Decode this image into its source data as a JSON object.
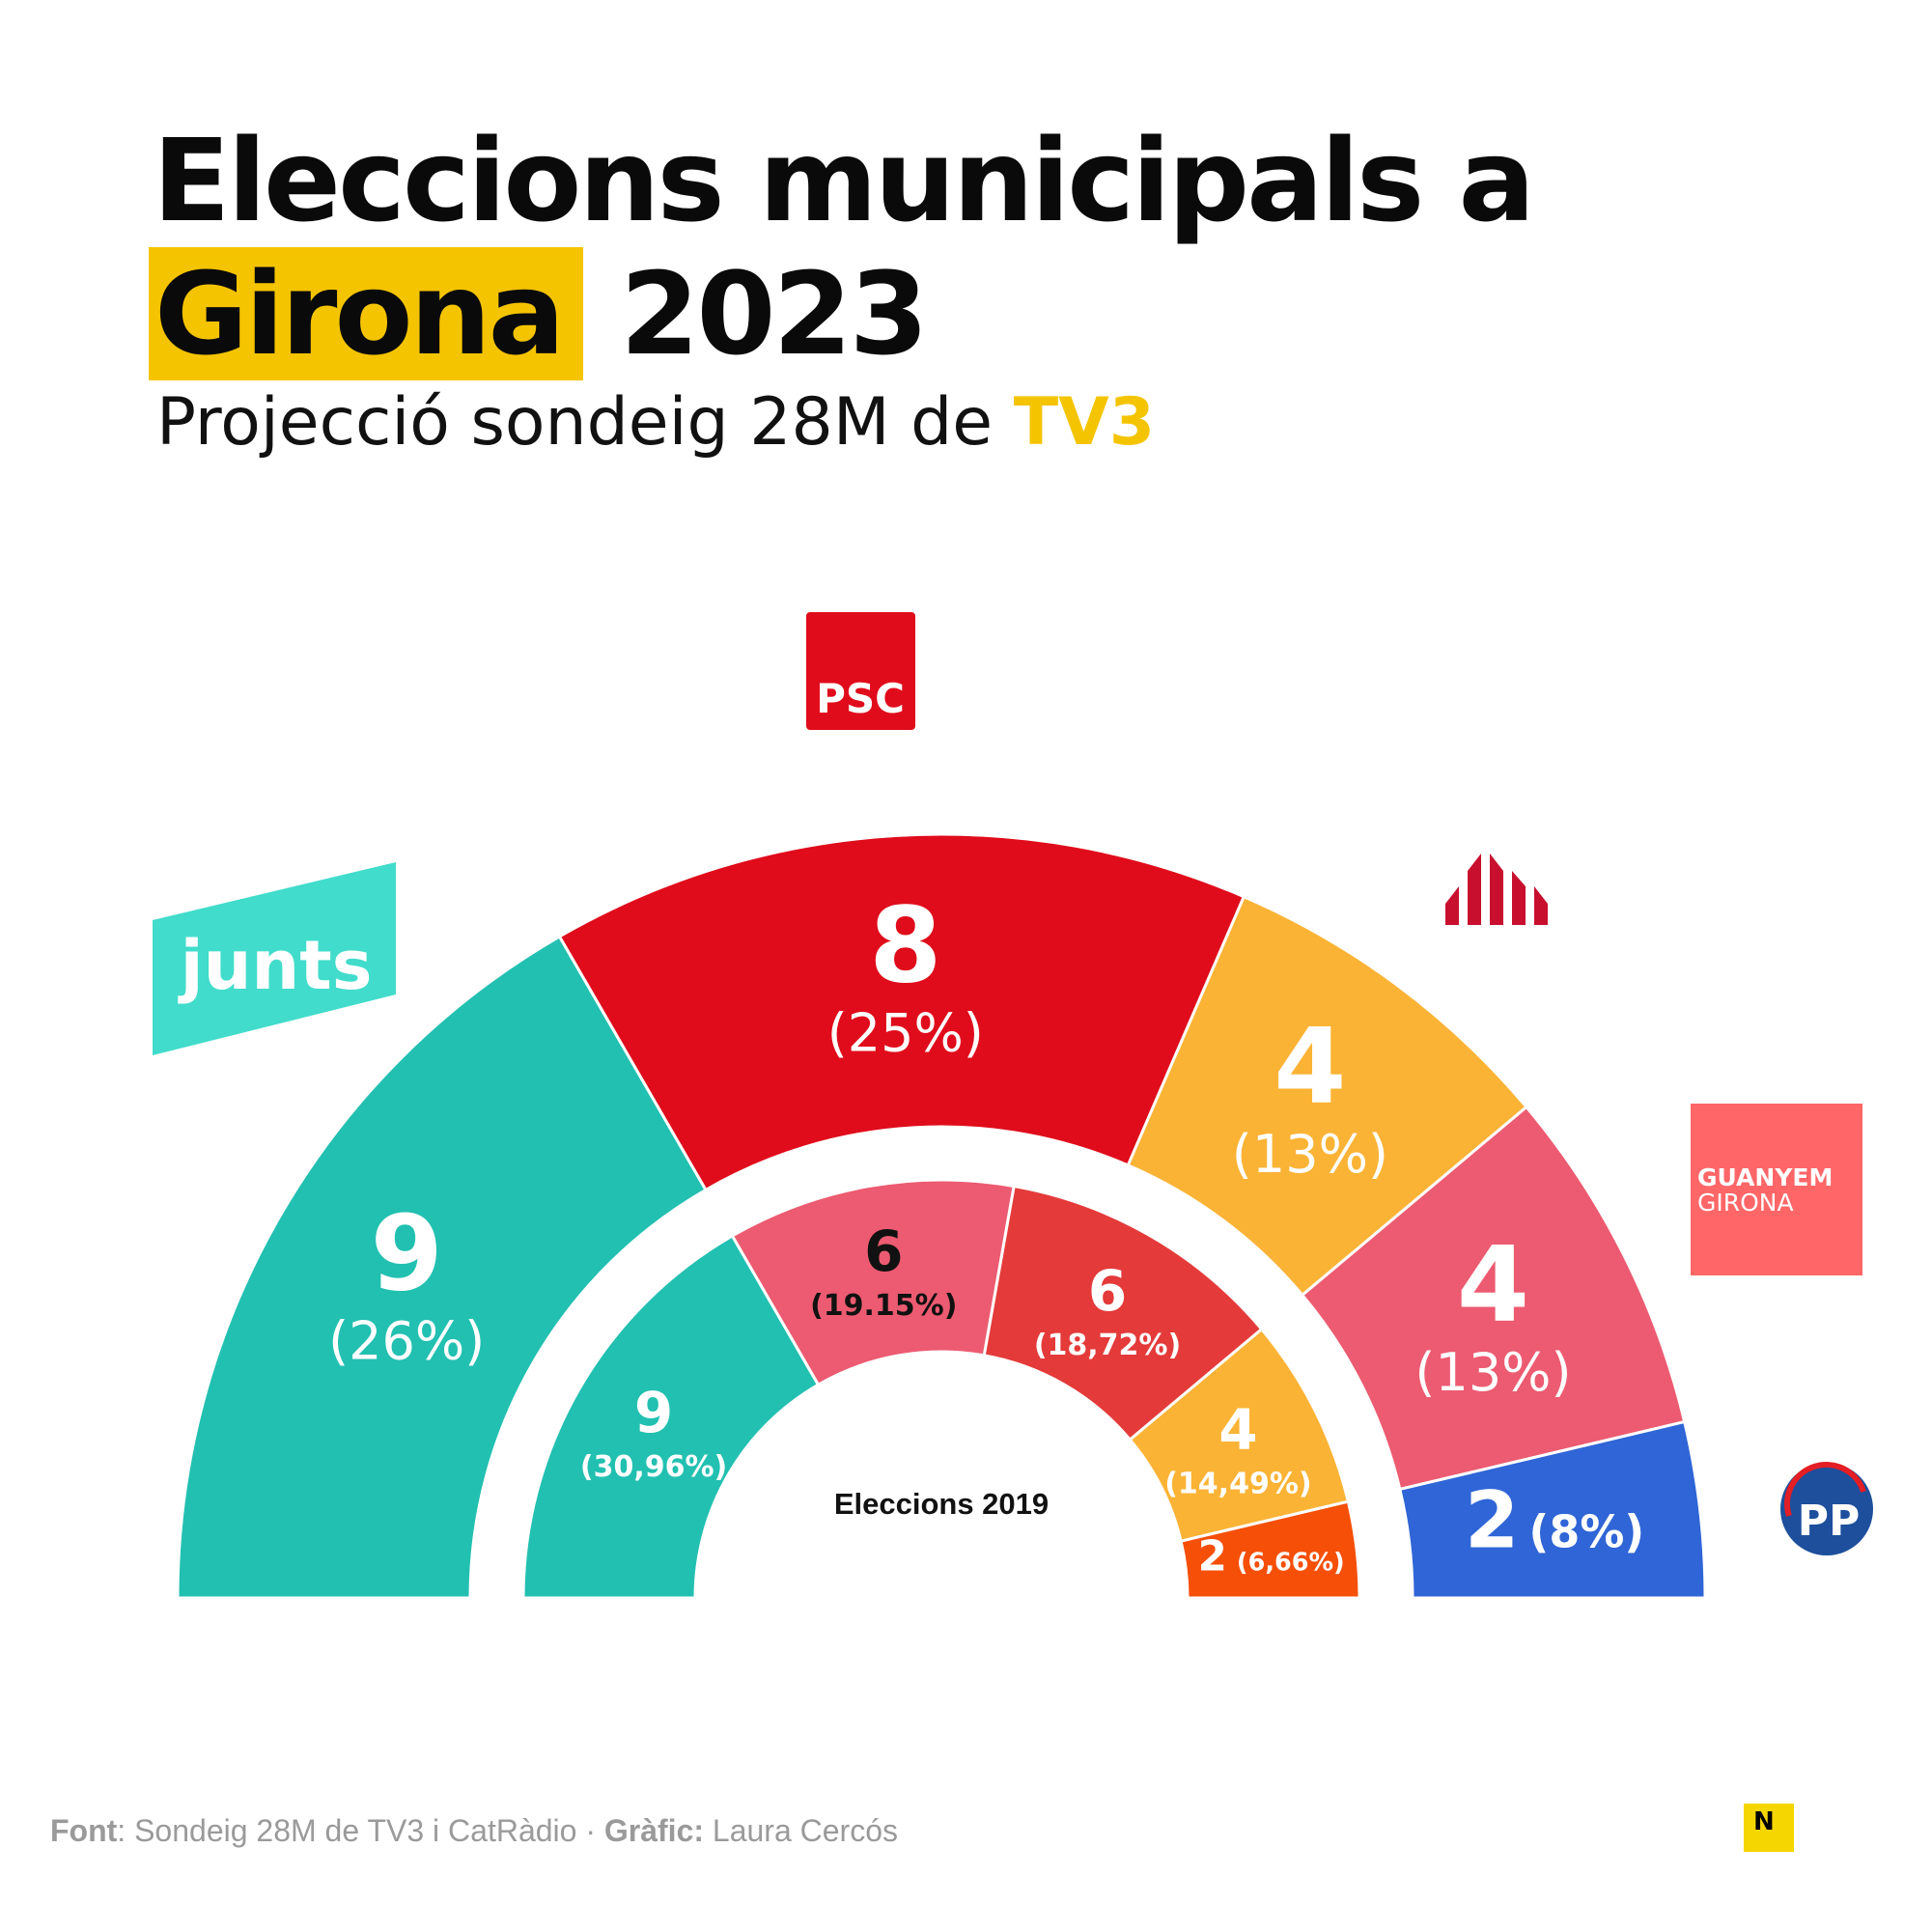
{
  "header": {
    "title_line1": "Eleccions municipals a",
    "title_highlight": "Girona",
    "title_year": "2023",
    "subtitle_text": "Projecció sondeig 28M de",
    "subtitle_accent": "TV3"
  },
  "colors": {
    "highlight": "#f5c400",
    "junts": "#22c0b1",
    "psc": "#e00c1b",
    "erc": "#fbb335",
    "guanyem": "#ec5b71",
    "pp": "#2f65d6",
    "party6_2019": "#f64f08",
    "psc_2019": "#e43a3a",
    "guanyem_2019": "#ec5b71"
  },
  "chart_data": [
    {
      "type": "semicircle",
      "name": "2023",
      "series": [
        {
          "party": "Junts",
          "seats": 9,
          "label": "(26%)",
          "color": "#22c0b1"
        },
        {
          "party": "PSC",
          "seats": 8,
          "label": "(25%)",
          "color": "#e00c1b"
        },
        {
          "party": "ERC",
          "seats": 4,
          "label": "(13%)",
          "color": "#fbb335"
        },
        {
          "party": "Guanyem Girona",
          "seats": 4,
          "label": "(13%)",
          "color": "#ec5b71"
        },
        {
          "party": "PP",
          "seats": 2,
          "label": "(8%)",
          "color": "#2f65d6"
        }
      ]
    },
    {
      "type": "semicircle",
      "name": "2019",
      "center_label": "Eleccions 2019",
      "series": [
        {
          "seats": 9,
          "label": "(30,96%)",
          "color": "#22c0b1"
        },
        {
          "seats": 6,
          "label": "(19.15%)",
          "color": "#ec5b71"
        },
        {
          "seats": 6,
          "label": "(18,72%)",
          "color": "#e43a3a"
        },
        {
          "seats": 4,
          "label": "(14,49%)",
          "color": "#fbb335"
        },
        {
          "seats": 2,
          "label": "(6,66%)",
          "color": "#f64f08"
        }
      ]
    }
  ],
  "logos": {
    "junts": "junts",
    "psc": "PSC",
    "guanyem_line1": "GUANYEM",
    "guanyem_line2": "GIRONA",
    "pp": "PP",
    "erc": "erc-logo"
  },
  "footer": {
    "font_label": "Font",
    "font_text": ": Sondeig 28M de TV3 i CatRàdio · ",
    "graphic_label": "Gràfic:",
    "graphic_text": " Laura Cercós",
    "nlogo": "N"
  }
}
